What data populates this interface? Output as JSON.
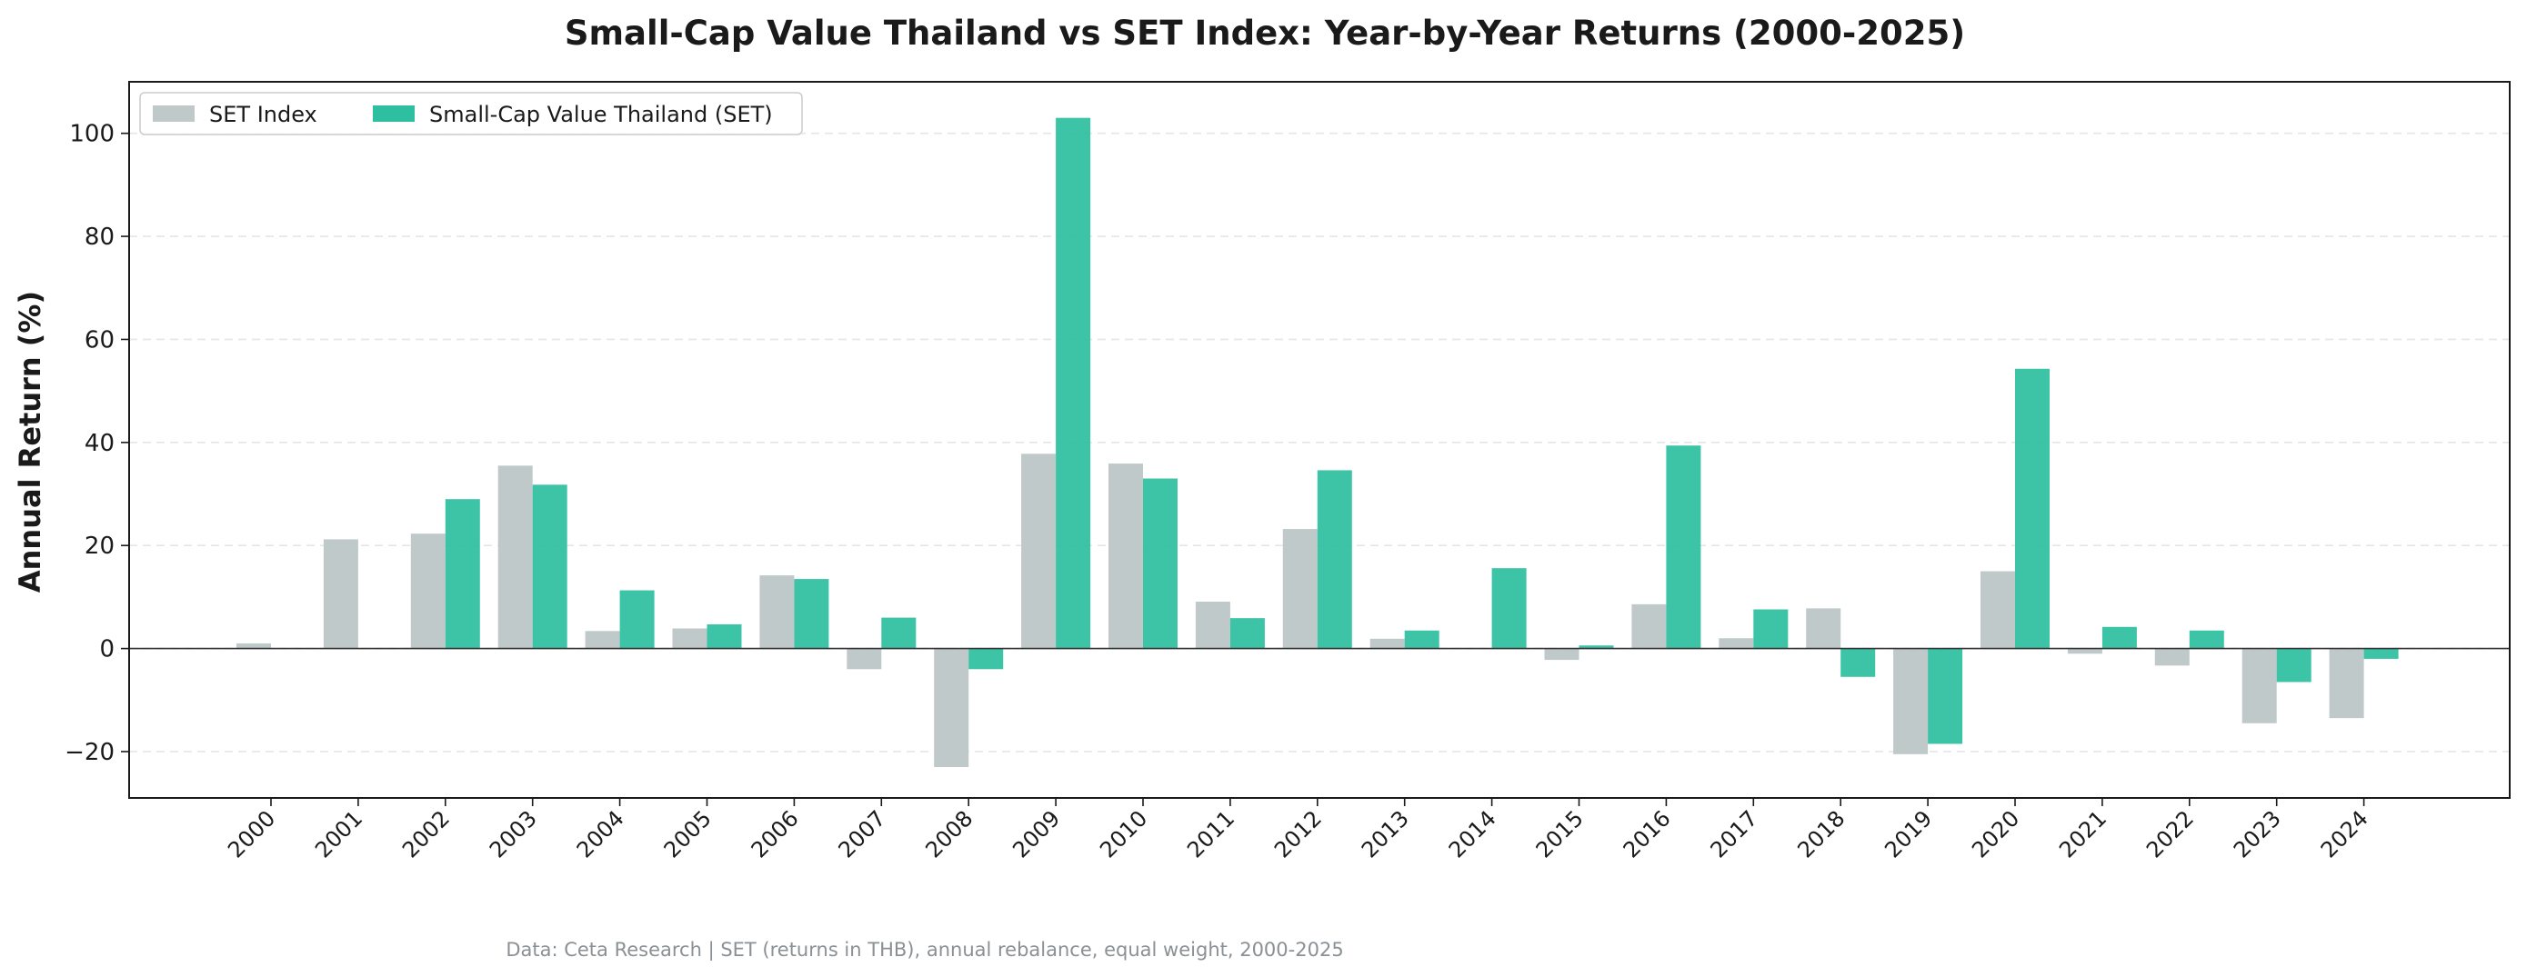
{
  "chart_data": {
    "type": "bar",
    "title": "Small-Cap Value Thailand vs SET Index: Year-by-Year Returns (2000-2025)",
    "xlabel": "",
    "ylabel": "Annual Return (%)",
    "ylim": [
      -29,
      110
    ],
    "yticks": [
      -20,
      0,
      20,
      40,
      60,
      80,
      100
    ],
    "ytick_labels": [
      "−20",
      "0",
      "20",
      "40",
      "60",
      "80",
      "100"
    ],
    "grid": "horizontal dashed",
    "legend_position": "top-left",
    "categories": [
      "2000",
      "2001",
      "2002",
      "2003",
      "2004",
      "2005",
      "2006",
      "2007",
      "2008",
      "2009",
      "2010",
      "2011",
      "2012",
      "2013",
      "2014",
      "2015",
      "2016",
      "2017",
      "2018",
      "2019",
      "2020",
      "2021",
      "2022",
      "2023",
      "2024"
    ],
    "series": [
      {
        "name": "SET Index",
        "color": "#bfc9ca",
        "values": [
          1.0,
          21.2,
          22.3,
          35.5,
          3.4,
          3.9,
          14.2,
          -4.0,
          -23.0,
          37.8,
          35.9,
          9.1,
          23.2,
          1.9,
          0.0,
          -2.2,
          8.6,
          2.0,
          7.8,
          -20.5,
          15.0,
          -1.0,
          -3.3,
          -14.5,
          -13.5
        ]
      },
      {
        "name": "Small-Cap Value Thailand (SET)",
        "color": "#2dbfa0",
        "values": [
          null,
          null,
          29.0,
          31.8,
          11.3,
          4.7,
          13.5,
          6.0,
          -4.0,
          103.0,
          33.0,
          5.9,
          34.6,
          3.5,
          15.6,
          0.6,
          39.4,
          7.6,
          -5.5,
          -18.5,
          54.3,
          4.2,
          3.5,
          -6.5,
          -2.0
        ]
      }
    ],
    "footer": "Data: Ceta Research | SET (returns in THB), annual rebalance, equal weight, 2000-2025"
  }
}
